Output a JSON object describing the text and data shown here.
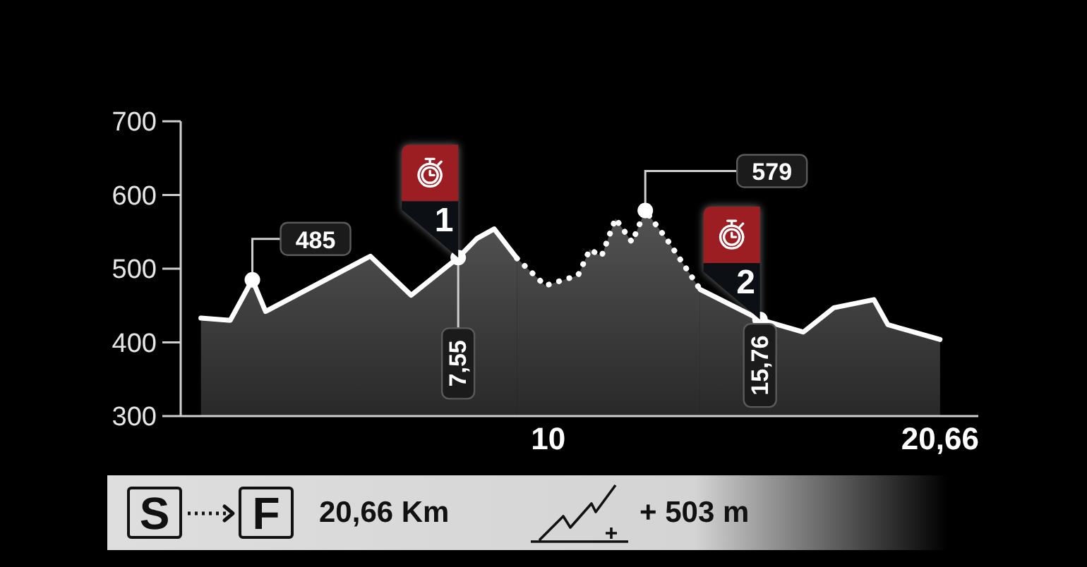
{
  "chart_data": {
    "type": "area",
    "series": [
      {
        "color": "#666666",
        "line_style": "solid",
        "x": [
          0.55,
          1.35,
          1.95,
          2.31,
          5.16,
          6.27,
          7.55,
          8.06,
          8.53,
          9.15
        ],
        "values": [
          433,
          430,
          485,
          442,
          517,
          464,
          515,
          541,
          554,
          514
        ]
      },
      {
        "color": "#666666",
        "line_style": "dotted",
        "x": [
          9.15,
          9.92,
          10.81,
          11.13,
          11.45,
          11.83,
          12.28,
          12.64,
          13.24,
          14.13
        ],
        "values": [
          514,
          477,
          491,
          526,
          517,
          568,
          536,
          579,
          539,
          472
        ]
      },
      {
        "color": "#666666",
        "line_style": "solid",
        "x": [
          14.13,
          15.76,
          16.94,
          17.77,
          18.86,
          19.24,
          20.66
        ],
        "values": [
          472,
          431,
          414,
          447,
          458,
          424,
          404
        ]
      }
    ],
    "xlim": [
      0,
      21.7
    ],
    "xticks": [
      10,
      {
        "value": 20.66,
        "label": "20,66"
      }
    ],
    "ylim": [
      300,
      700
    ],
    "yticks": [
      300,
      400,
      500,
      600,
      700
    ],
    "annotations": [
      {
        "text": "485",
        "x": 1.95,
        "y": 485
      },
      {
        "text": "579",
        "x": 12.64,
        "y": 579
      },
      {
        "text": "7,55",
        "x": 7.55,
        "y": 515
      },
      {
        "text": "15,76",
        "x": 15.76,
        "y": 431
      },
      {
        "text": "1",
        "x": 7.55,
        "y": 515
      },
      {
        "text": "2",
        "x": 15.76,
        "y": 431
      },
      "S",
      "F",
      "20,66 Km",
      "+ 503 m"
    ]
  }
}
